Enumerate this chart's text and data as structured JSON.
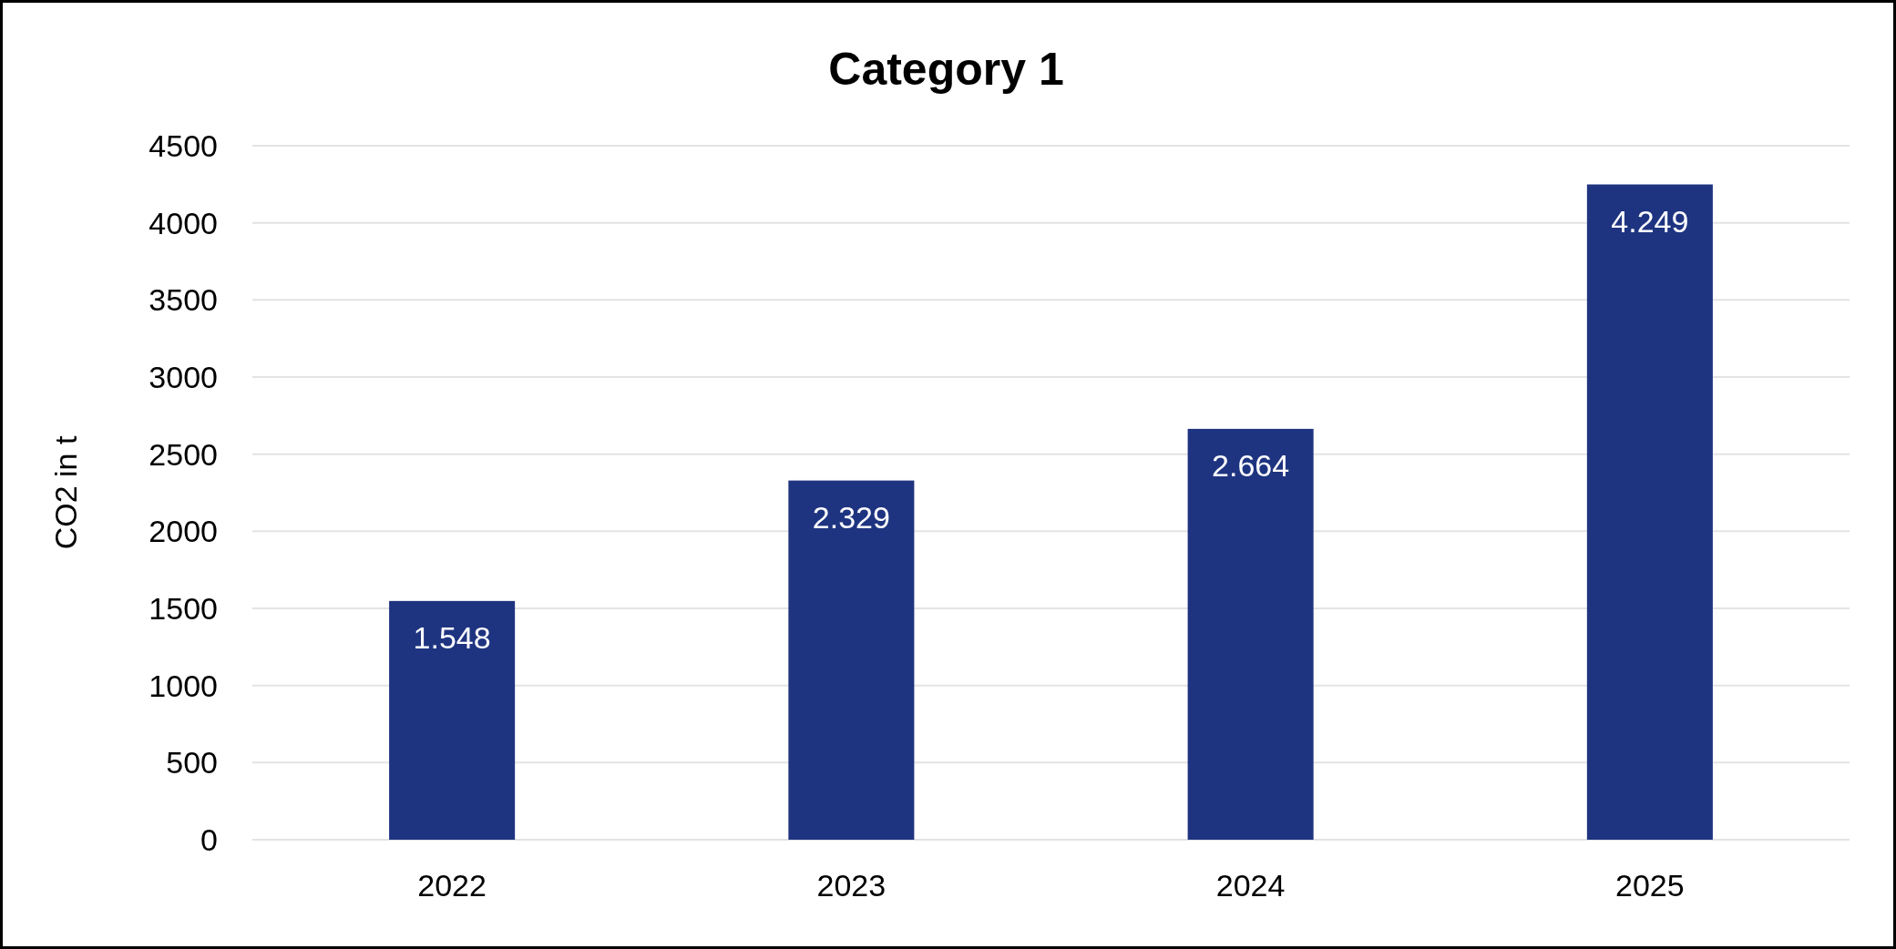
{
  "chart_data": {
    "type": "bar",
    "title": "Category 1",
    "ylabel": "CO2 in t",
    "categories": [
      "2022",
      "2023",
      "2024",
      "2025"
    ],
    "values": [
      1548,
      2329,
      2664,
      4249
    ],
    "value_labels": [
      "1.548",
      "2.329",
      "2.664",
      "4.249"
    ],
    "color": "#1f3480",
    "ylim": [
      0,
      4500
    ],
    "yticks": [
      0,
      500,
      1000,
      1500,
      2000,
      2500,
      3000,
      3500,
      4000,
      4500
    ],
    "grid": "y"
  }
}
